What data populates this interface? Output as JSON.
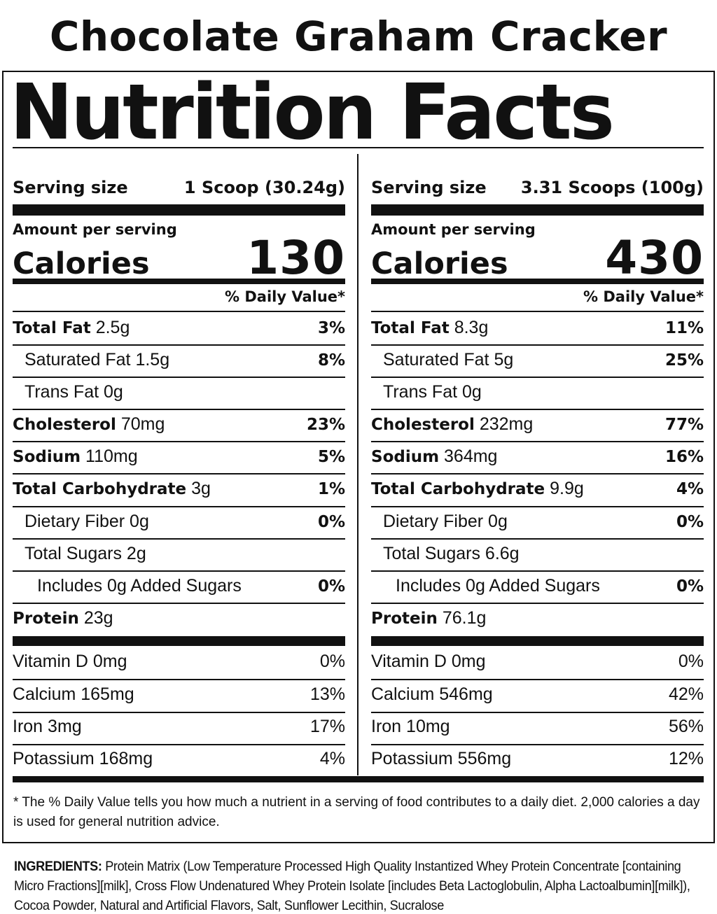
{
  "product_name": "Chocolate Graham Cracker",
  "panel_title": "Nutrition Facts",
  "columns": [
    {
      "serving_size_label": "Serving size",
      "serving_size_value": "1 Scoop (30.24g)",
      "amount_per_serving": "Amount per serving",
      "calories_label": "Calories",
      "calories_value": "130",
      "daily_value_header": "% Daily Value*",
      "nutrients": [
        {
          "name": "Total Fat",
          "amount": "2.5g",
          "dv": "3%"
        },
        {
          "name": "Saturated Fat",
          "amount": "1.5g",
          "dv": "8%"
        },
        {
          "name": "Trans Fat",
          "amount": "0g",
          "dv": ""
        },
        {
          "name": "Cholesterol",
          "amount": "70mg",
          "dv": "23%"
        },
        {
          "name": "Sodium",
          "amount": "110mg",
          "dv": "5%"
        },
        {
          "name": "Total Carbohydrate",
          "amount": "3g",
          "dv": "1%"
        },
        {
          "name": "Dietary Fiber",
          "amount": "0g",
          "dv": "0%"
        },
        {
          "name": "Total Sugars",
          "amount": "2g",
          "dv": ""
        },
        {
          "name": "Includes 0g Added Sugars",
          "amount": "",
          "dv": "0%"
        },
        {
          "name": "Protein",
          "amount": "23g",
          "dv": ""
        }
      ],
      "vitamins": [
        {
          "name": "Vitamin D",
          "amount": "0mg",
          "dv": "0%"
        },
        {
          "name": "Calcium",
          "amount": "165mg",
          "dv": "13%"
        },
        {
          "name": "Iron",
          "amount": "3mg",
          "dv": "17%"
        },
        {
          "name": "Potassium",
          "amount": "168mg",
          "dv": "4%"
        }
      ]
    },
    {
      "serving_size_label": "Serving size",
      "serving_size_value": "3.31 Scoops (100g)",
      "amount_per_serving": "Amount per serving",
      "calories_label": "Calories",
      "calories_value": "430",
      "daily_value_header": "% Daily Value*",
      "nutrients": [
        {
          "name": "Total Fat",
          "amount": "8.3g",
          "dv": "11%"
        },
        {
          "name": "Saturated Fat",
          "amount": "5g",
          "dv": "25%"
        },
        {
          "name": "Trans Fat",
          "amount": "0g",
          "dv": ""
        },
        {
          "name": "Cholesterol",
          "amount": "232mg",
          "dv": "77%"
        },
        {
          "name": "Sodium",
          "amount": "364mg",
          "dv": "16%"
        },
        {
          "name": "Total Carbohydrate",
          "amount": "9.9g",
          "dv": "4%"
        },
        {
          "name": "Dietary Fiber",
          "amount": "0g",
          "dv": "0%"
        },
        {
          "name": "Total Sugars",
          "amount": "6.6g",
          "dv": ""
        },
        {
          "name": "Includes 0g Added Sugars",
          "amount": "",
          "dv": "0%"
        },
        {
          "name": "Protein",
          "amount": "76.1g",
          "dv": ""
        }
      ],
      "vitamins": [
        {
          "name": "Vitamin D",
          "amount": "0mg",
          "dv": "0%"
        },
        {
          "name": "Calcium",
          "amount": "546mg",
          "dv": "42%"
        },
        {
          "name": "Iron",
          "amount": "10mg",
          "dv": "56%"
        },
        {
          "name": "Potassium",
          "amount": "556mg",
          "dv": "12%"
        }
      ]
    }
  ],
  "footnote": "* The % Daily Value tells you how much a nutrient in a serving of food contributes to a daily diet. 2,000 calories a day is used for general nutrition advice.",
  "ingredients": {
    "label": "INGREDIENTS:",
    "text": "Protein Matrix (Low Temperature Processed High Quality Instantized Whey Protein Concentrate [containing Micro Fractions][milk], Cross Flow Undenatured Whey Protein Isolate [includes Beta Lactoglobulin, Alpha Lactoalbumin][milk]), Cocoa Powder, Natural and Artificial Flavors, Salt, Sunflower Lecithin, Sucralose"
  }
}
